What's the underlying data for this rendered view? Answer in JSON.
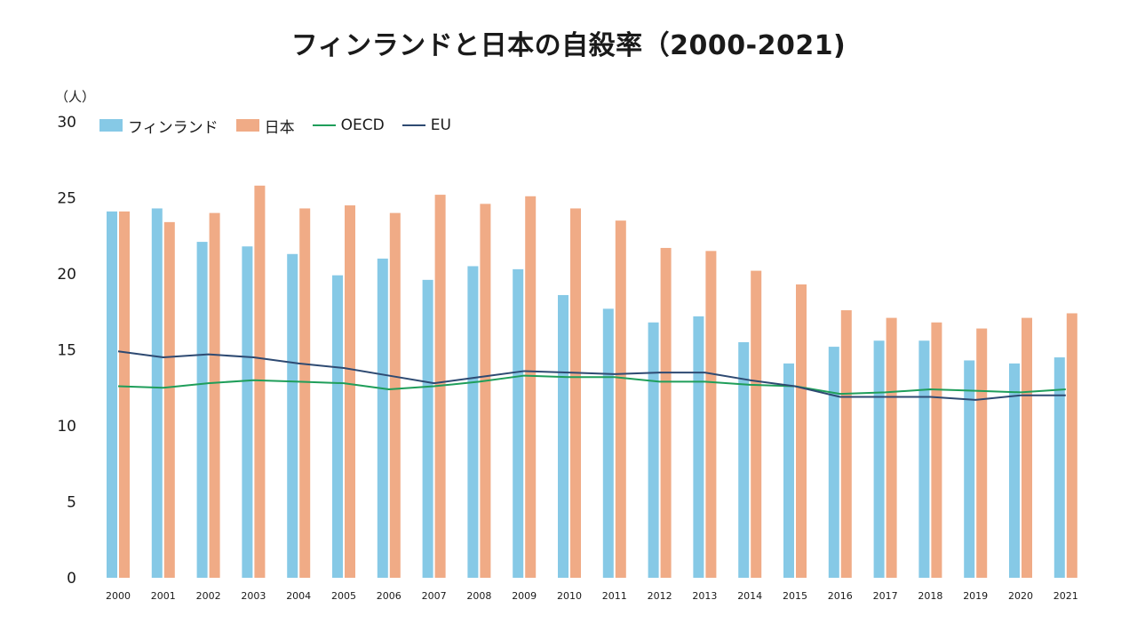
{
  "chart_data": {
    "type": "bar",
    "title": "フィンランドと日本の自殺率（2000-2021)",
    "unit_label": "（人）",
    "categories": [
      "2000",
      "2001",
      "2002",
      "2003",
      "2004",
      "2005",
      "2006",
      "2007",
      "2008",
      "2009",
      "2010",
      "2011",
      "2012",
      "2013",
      "2014",
      "2015",
      "2016",
      "2017",
      "2018",
      "2019",
      "2020",
      "2021"
    ],
    "ylim": [
      0,
      30
    ],
    "yticks": [
      0,
      5,
      10,
      15,
      20,
      25,
      30
    ],
    "grid": false,
    "legend_position": "top-left",
    "series": [
      {
        "name": "フィンランド",
        "type": "bar",
        "color": "#86c9e6",
        "values": [
          24.1,
          24.3,
          22.1,
          21.8,
          21.3,
          19.9,
          21.0,
          19.6,
          20.5,
          20.3,
          18.6,
          17.7,
          16.8,
          17.2,
          15.5,
          14.1,
          15.2,
          15.6,
          15.6,
          14.3,
          14.1,
          14.5
        ]
      },
      {
        "name": "日本",
        "type": "bar",
        "color": "#f0ab86",
        "values": [
          24.1,
          23.4,
          24.0,
          25.8,
          24.3,
          24.5,
          24.0,
          25.2,
          24.6,
          25.1,
          24.3,
          23.5,
          21.7,
          21.5,
          20.2,
          19.3,
          17.6,
          17.1,
          16.8,
          16.4,
          17.1,
          17.4
        ]
      },
      {
        "name": "OECD",
        "type": "line",
        "color": "#1f9e5a",
        "values": [
          12.6,
          12.5,
          12.8,
          13.0,
          12.9,
          12.8,
          12.4,
          12.6,
          12.9,
          13.3,
          13.2,
          13.2,
          12.9,
          12.9,
          12.7,
          12.6,
          12.1,
          12.2,
          12.4,
          12.3,
          12.2,
          12.4
        ]
      },
      {
        "name": "EU",
        "type": "line",
        "color": "#2e4a72",
        "values": [
          14.9,
          14.5,
          14.7,
          14.5,
          14.1,
          13.8,
          13.3,
          12.8,
          13.2,
          13.6,
          13.5,
          13.4,
          13.5,
          13.5,
          13.0,
          12.6,
          11.9,
          11.9,
          11.9,
          11.7,
          12.0,
          12.0
        ]
      }
    ]
  }
}
